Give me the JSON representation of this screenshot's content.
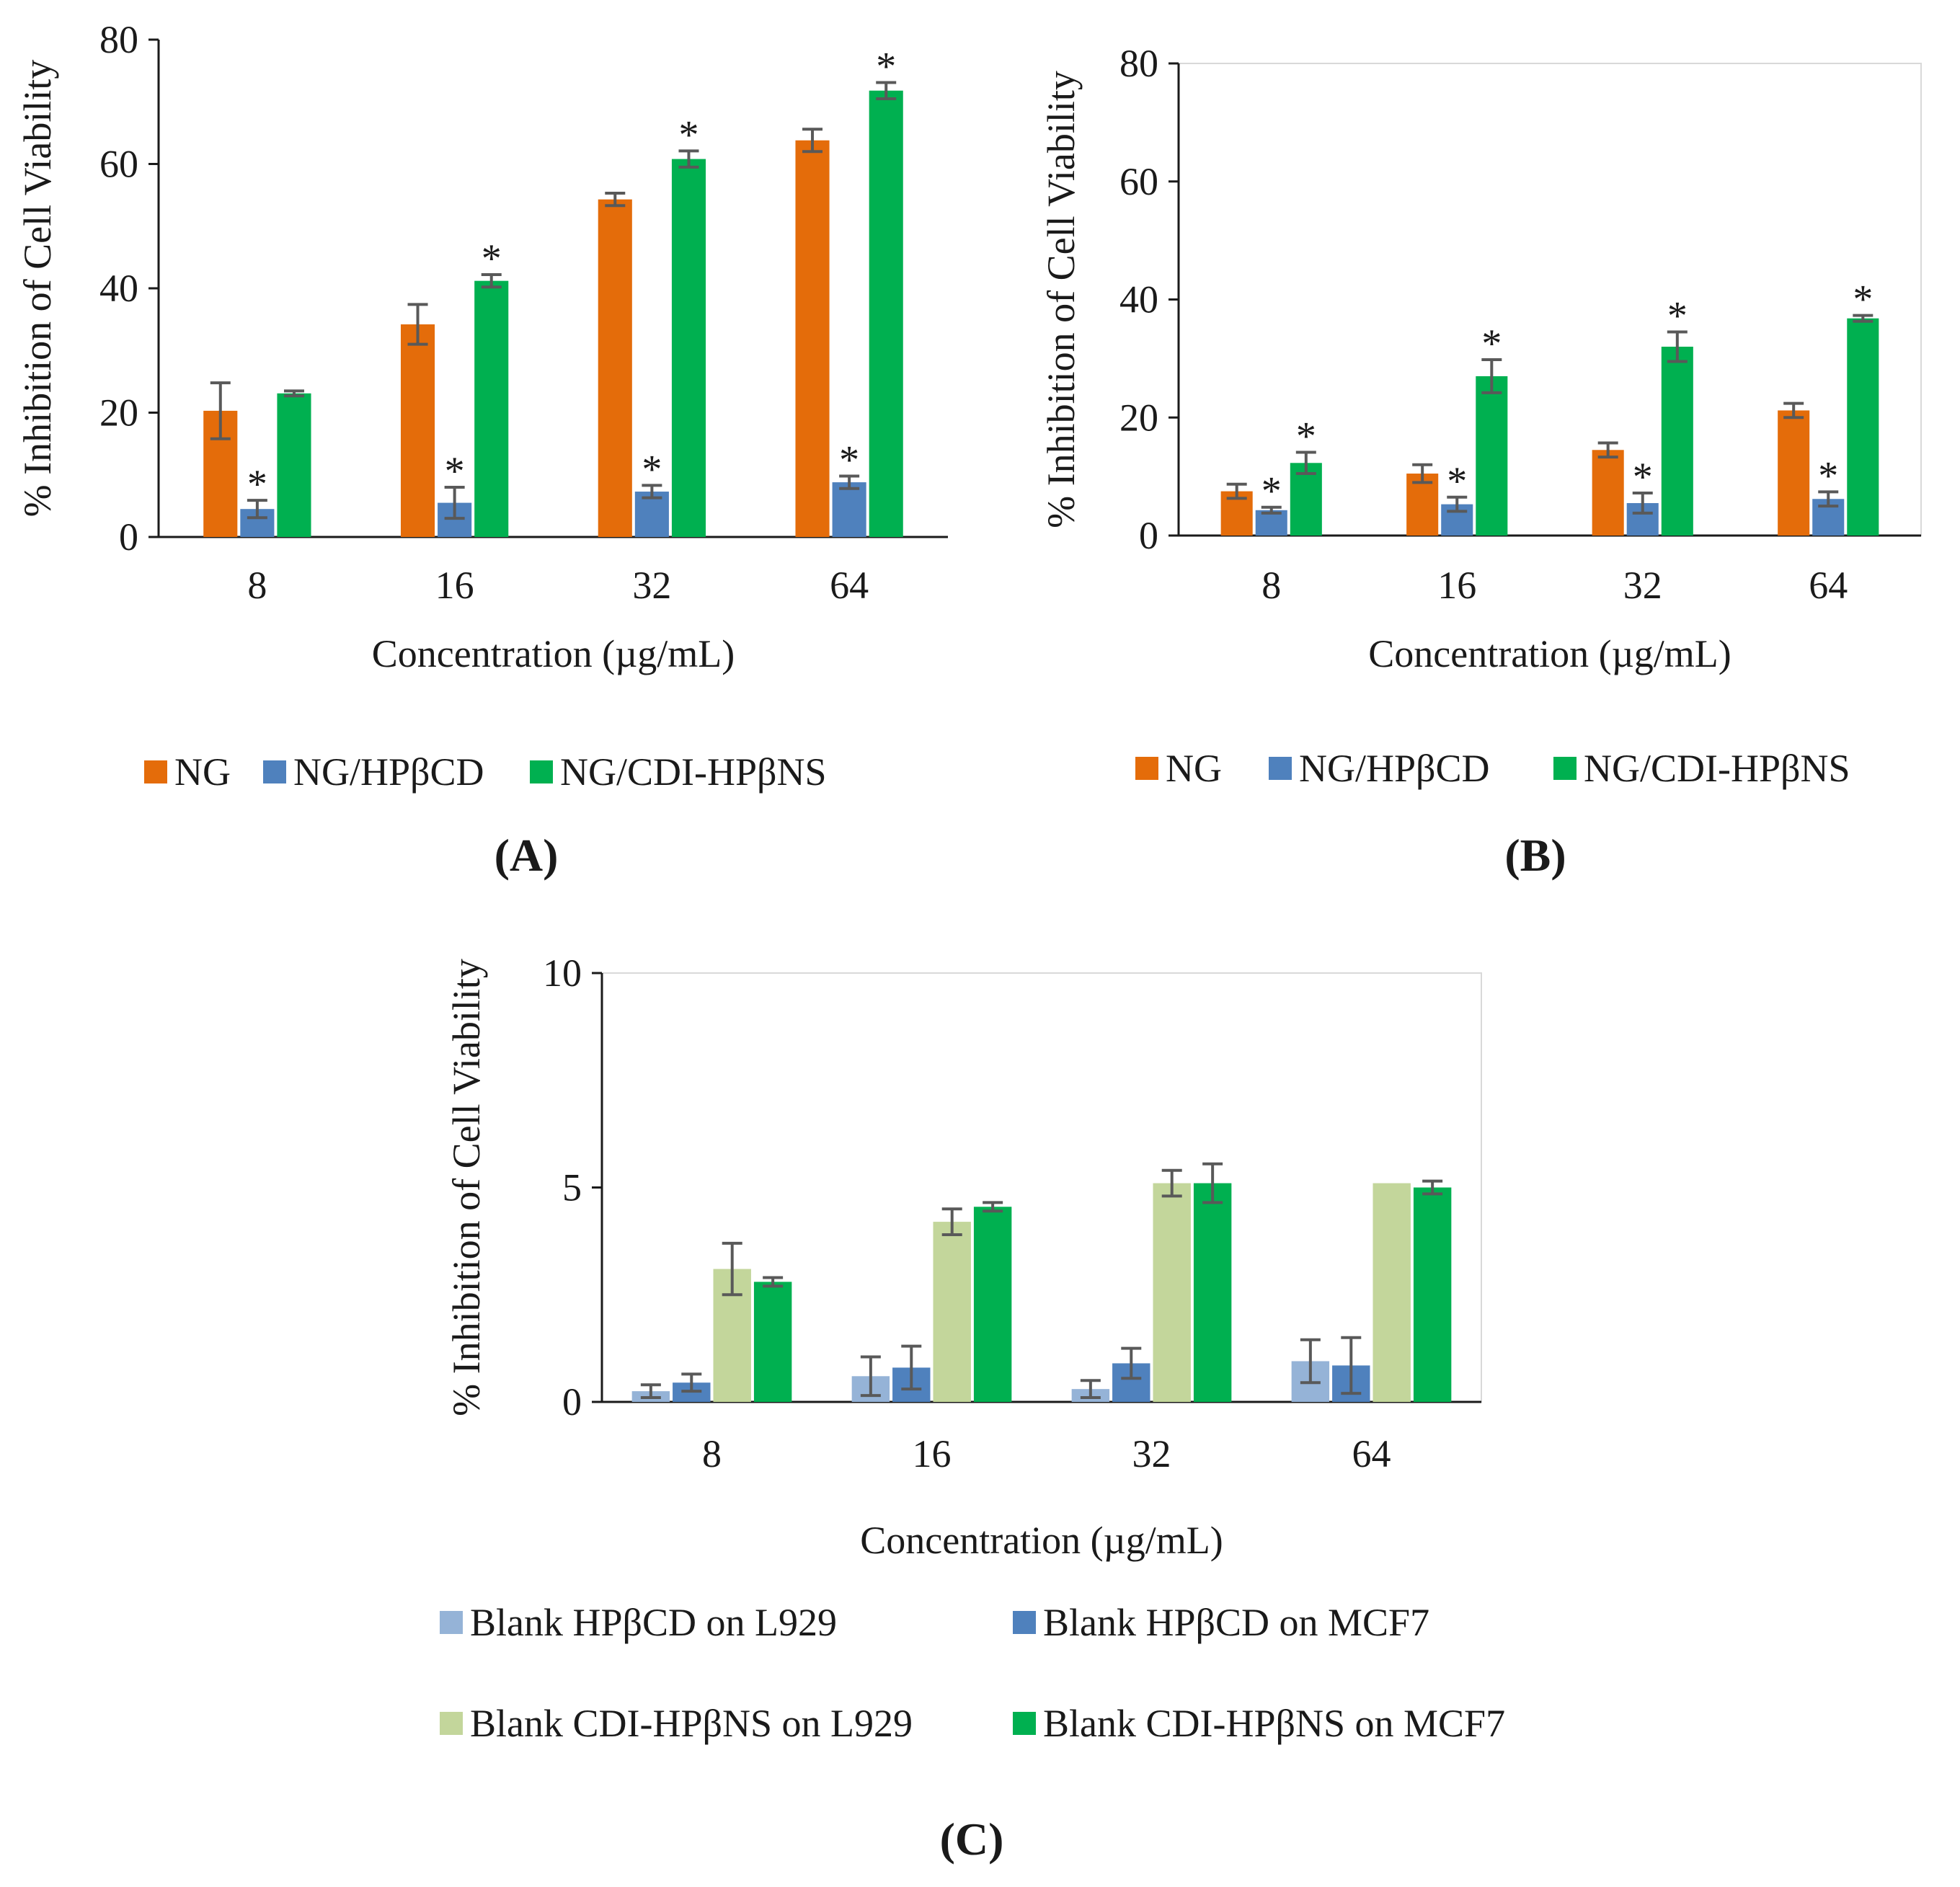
{
  "panels": [
    {
      "id": "A",
      "label": "(A)",
      "chart_data": {
        "type": "bar",
        "categories": [
          "8",
          "16",
          "32",
          "64"
        ],
        "ylim": [
          0,
          80
        ],
        "yticks": [
          0,
          20,
          40,
          60,
          80
        ],
        "ylabel": "% Inhibition of Cell Viability",
        "xlabel": "Concentration (µg/mL)",
        "series": [
          {
            "name": "NG",
            "color": "#E46C0A",
            "values": [
              20.3,
              34.2,
              54.3,
              63.8
            ],
            "errors": [
              4.5,
              3.2,
              1.0,
              1.8
            ],
            "stars": [
              false,
              false,
              false,
              false
            ]
          },
          {
            "name": "NG/HPβCD",
            "color": "#4F81BD",
            "values": [
              4.5,
              5.5,
              7.3,
              8.8
            ],
            "errors": [
              1.4,
              2.5,
              1.0,
              1.0
            ],
            "stars": [
              true,
              true,
              true,
              true
            ]
          },
          {
            "name": "NG/CDI-HPβNS",
            "color": "#00B050",
            "values": [
              23.1,
              41.2,
              60.8,
              71.8
            ],
            "errors": [
              0.4,
              1.0,
              1.3,
              1.3
            ],
            "stars": [
              false,
              true,
              true,
              true
            ]
          }
        ],
        "star_symbol": "*"
      }
    },
    {
      "id": "B",
      "label": "(B)",
      "chart_data": {
        "type": "bar",
        "categories": [
          "8",
          "16",
          "32",
          "64"
        ],
        "ylim": [
          0,
          80
        ],
        "yticks": [
          0,
          20,
          40,
          60,
          80
        ],
        "ylabel": "% Inhibition of Cell Viability",
        "xlabel": "Concentration (µg/mL)",
        "series": [
          {
            "name": "NG",
            "color": "#E46C0A",
            "values": [
              7.5,
              10.5,
              14.5,
              21.2
            ],
            "errors": [
              1.2,
              1.5,
              1.2,
              1.2
            ],
            "stars": [
              false,
              false,
              false,
              false
            ]
          },
          {
            "name": "NG/HPβCD",
            "color": "#4F81BD",
            "values": [
              4.3,
              5.3,
              5.5,
              6.2
            ],
            "errors": [
              0.5,
              1.2,
              1.7,
              1.2
            ],
            "stars": [
              true,
              true,
              true,
              true
            ]
          },
          {
            "name": "NG/CDI-HPβNS",
            "color": "#00B050",
            "values": [
              12.3,
              27.0,
              32.0,
              36.8
            ],
            "errors": [
              1.8,
              2.8,
              2.5,
              0.5
            ],
            "stars": [
              true,
              true,
              true,
              true
            ]
          }
        ],
        "star_symbol": "*"
      }
    },
    {
      "id": "C",
      "label": "(C)",
      "chart_data": {
        "type": "bar",
        "categories": [
          "8",
          "16",
          "32",
          "64"
        ],
        "ylim": [
          0,
          10
        ],
        "yticks": [
          0,
          5,
          10
        ],
        "ylabel": "% Inhibition of Cell Viability",
        "xlabel": "Concentration (µg/mL)",
        "series": [
          {
            "name": "Blank HPβCD on L929",
            "color": "#95B3D7",
            "values": [
              0.25,
              0.6,
              0.3,
              0.95
            ],
            "errors": [
              0.15,
              0.45,
              0.2,
              0.5
            ],
            "stars": [
              false,
              false,
              false,
              false
            ]
          },
          {
            "name": "Blank HPβCD on MCF7",
            "color": "#4F81BD",
            "values": [
              0.45,
              0.8,
              0.9,
              0.85
            ],
            "errors": [
              0.2,
              0.5,
              0.35,
              0.65
            ],
            "stars": [
              false,
              false,
              false,
              false
            ]
          },
          {
            "name": "Blank CDI-HPβNS on L929",
            "color": "#C3D69B",
            "values": [
              3.1,
              4.2,
              5.1,
              5.1
            ],
            "errors": [
              0.6,
              0.3,
              0.3,
              0.0
            ],
            "stars": [
              false,
              false,
              false,
              false
            ]
          },
          {
            "name": "Blank CDI-HPβNS on MCF7",
            "color": "#00B050",
            "values": [
              2.8,
              4.55,
              5.1,
              5.0
            ],
            "errors": [
              0.1,
              0.1,
              0.45,
              0.15
            ],
            "stars": [
              false,
              false,
              false,
              false
            ]
          }
        ],
        "star_symbol": "*"
      }
    }
  ]
}
